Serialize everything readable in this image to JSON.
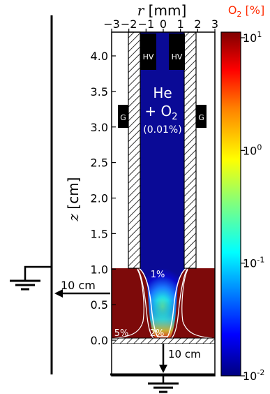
{
  "axes": {
    "x_label_symbol": "r",
    "x_label_unit": "[mm]",
    "x_ticks": [
      "−3",
      "−2",
      "−1",
      "0",
      "1",
      "2",
      "3"
    ],
    "y_label_symbol": "z",
    "y_label_unit": "[cm]",
    "y_ticks": [
      "4.0",
      "3.5",
      "3.0",
      "2.5",
      "2.0",
      "1.5",
      "1.0",
      "0.5",
      "0.0"
    ]
  },
  "colorbar": {
    "title": "O",
    "title_sub": "2",
    "title_unit": "[%]",
    "title_color": "#ff2a00",
    "base": "10",
    "exponents": [
      "1",
      "0",
      "-1",
      "-2"
    ],
    "colormap": [
      "#00007f",
      "#0000ff",
      "#007fff",
      "#00ffff",
      "#7fff7f",
      "#ffff00",
      "#ff7f00",
      "#ff0000",
      "#7f0000"
    ]
  },
  "device": {
    "electrode_label": "HV",
    "ground_ring_label": "G",
    "gas_line1": "He",
    "gas_line2_prefix": "+ O",
    "gas_line2_sub": "2",
    "gas_line3": "(0.01%)"
  },
  "contours": {
    "label_1": "1%",
    "label_2": "2%",
    "label_5": "5%"
  },
  "distances": {
    "left": "10 cm",
    "bottom": "10 cm"
  },
  "colors": {
    "jet_core": "#0a0a96",
    "ambient": "#7d0a0a",
    "hatch": "#000000"
  }
}
